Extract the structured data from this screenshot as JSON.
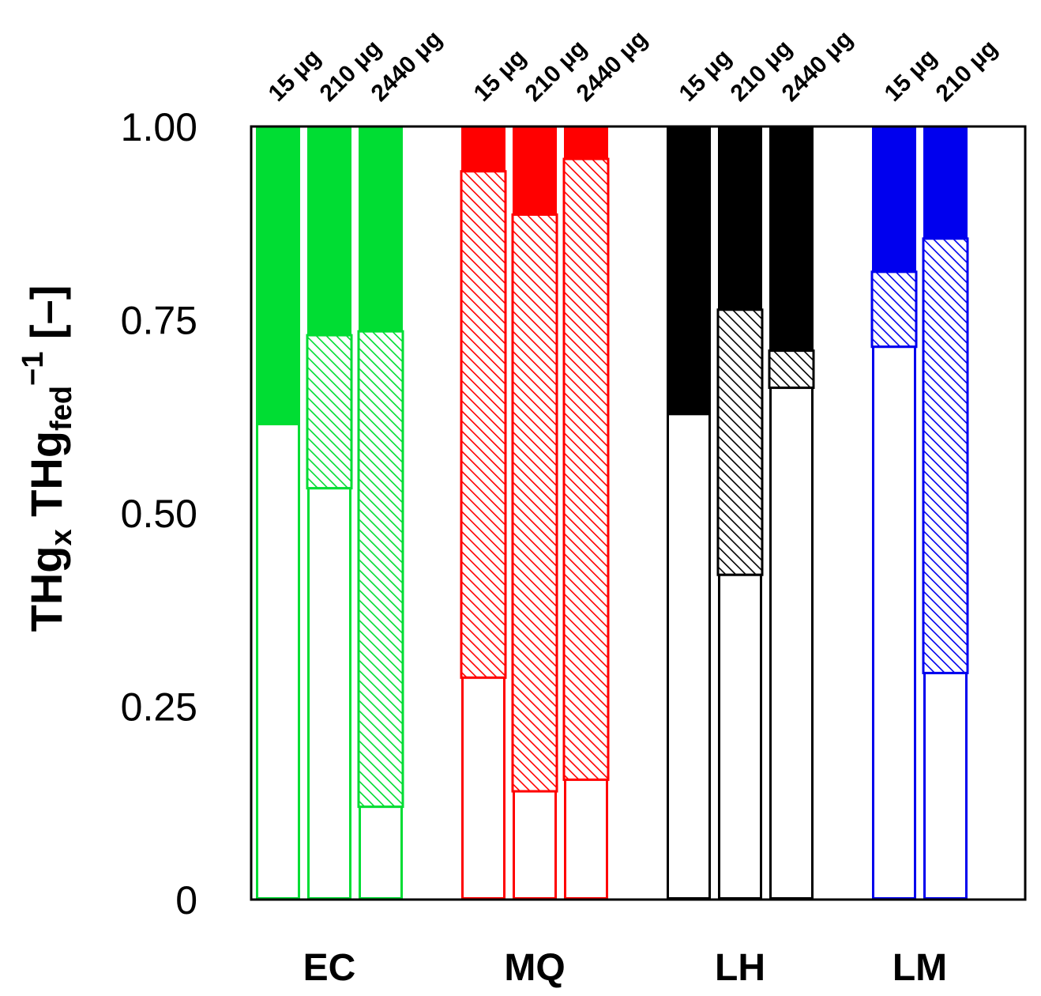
{
  "chart_data": {
    "type": "bar",
    "stacked": true,
    "ylabel": {
      "main": "THg",
      "sub_x": "x",
      "middle": " THg",
      "sub_fed": "fed",
      "sup": "−1",
      "unit": " [–]"
    },
    "ylim": [
      0,
      1
    ],
    "yticks": [
      {
        "value": 0,
        "label": "0"
      },
      {
        "value": 0.25,
        "label": "0.25"
      },
      {
        "value": 0.5,
        "label": "0.50"
      },
      {
        "value": 0.75,
        "label": "0.75"
      },
      {
        "value": 1,
        "label": "1.00"
      }
    ],
    "grid": false,
    "legend": "none",
    "segments": [
      "open",
      "hatched",
      "solid"
    ],
    "groups": [
      {
        "name": "EC",
        "color": "#00dd33",
        "bars": [
          {
            "label": "15 μg",
            "open": 0.615,
            "hatched": 0.615
          },
          {
            "label": "210 μg",
            "open": 0.532,
            "hatched": 0.73
          },
          {
            "label": "2440 μg",
            "open": 0.12,
            "hatched": 0.735
          }
        ]
      },
      {
        "name": "MQ",
        "color": "#ff0000",
        "bars": [
          {
            "label": "15 μg",
            "open": 0.287,
            "hatched": 0.942
          },
          {
            "label": "210 μg",
            "open": 0.14,
            "hatched": 0.886
          },
          {
            "label": "2440 μg",
            "open": 0.155,
            "hatched": 0.958
          }
        ]
      },
      {
        "name": "LH",
        "color": "#000000",
        "bars": [
          {
            "label": "15 μg",
            "open": 0.628,
            "hatched": 0.628
          },
          {
            "label": "210 μg",
            "open": 0.42,
            "hatched": 0.763
          },
          {
            "label": "2440 μg",
            "open": 0.662,
            "hatched": 0.71
          }
        ]
      },
      {
        "name": "LM",
        "color": "#0000ee",
        "bars": [
          {
            "label": "15 μg",
            "open": 0.715,
            "hatched": 0.812
          },
          {
            "label": "210 μg",
            "open": 0.293,
            "hatched": 0.855
          }
        ]
      }
    ]
  }
}
